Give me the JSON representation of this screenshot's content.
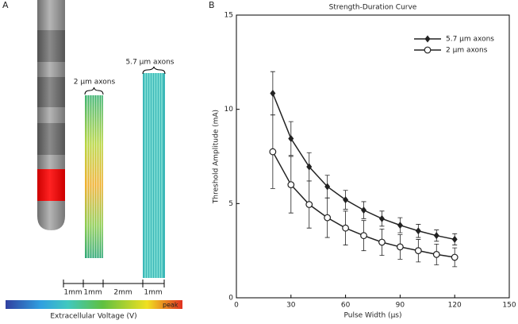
{
  "panel_labels": [
    "A",
    "B"
  ],
  "diagram": {
    "axon_groups": [
      "2 µm axons",
      "5.7 µm axons"
    ],
    "scale_labels": [
      "1mm",
      "1mm",
      "2mm",
      "1mm"
    ],
    "colorbar_peak": "peak",
    "colorbar_label": "Extracellular Voltage (V)"
  },
  "chart_data": {
    "type": "line",
    "title": "Strength-Duration Curve",
    "x_label": "Pulse Width (µs)",
    "y_label": "Threshold Amplitude (mA)",
    "x": [
      20,
      30,
      40,
      50,
      60,
      70,
      80,
      90,
      100,
      110,
      120
    ],
    "series": [
      {
        "name": "5.7 µm axons",
        "color": "#222222",
        "marker": "diamond",
        "values": [
          10.85,
          8.45,
          6.95,
          5.9,
          5.2,
          4.65,
          4.2,
          3.85,
          3.55,
          3.3,
          3.1
        ],
        "errors": [
          1.15,
          0.9,
          0.75,
          0.6,
          0.5,
          0.45,
          0.4,
          0.4,
          0.35,
          0.3,
          0.3
        ]
      },
      {
        "name": "2 µm axons",
        "color": "#222222",
        "marker": "open-circle",
        "values": [
          7.75,
          6.0,
          4.95,
          4.25,
          3.7,
          3.3,
          2.95,
          2.7,
          2.5,
          2.3,
          2.15
        ],
        "errors": [
          1.95,
          1.5,
          1.25,
          1.05,
          0.9,
          0.8,
          0.7,
          0.65,
          0.6,
          0.55,
          0.5
        ]
      }
    ],
    "xlim": [
      0,
      150
    ],
    "xticks": [
      0,
      30,
      60,
      90,
      120,
      150
    ],
    "ylim": [
      0,
      15
    ],
    "yticks": [
      0,
      5,
      10,
      15
    ],
    "legend": "upper right"
  }
}
